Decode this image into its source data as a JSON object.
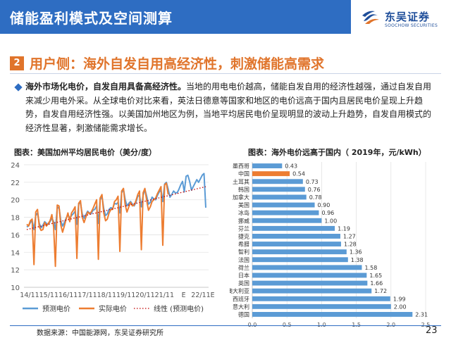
{
  "header": {
    "title": "储能盈利模式及空间测算"
  },
  "logo": {
    "name_cn": "东吴证券",
    "name_en": "SOOCHOW SECURITIES",
    "colors": {
      "primary": "#1f4e9a",
      "accent": "#e0742b"
    }
  },
  "section": {
    "number": "2",
    "title": "用户侧：海外自发自用高经济性，刺激储能高需求"
  },
  "body": {
    "bold_lead": "海外市场化电价，自发自用具备高经济性。",
    "text": "当地的用电电价越高，储能自发自用的经济性越强，通过自发自用来减少用电外采。从全球电价对比来看，英法日德意等国家和地区的电价远高于国内且居民电价呈现上升趋势，自发自用经济性强。以美国加州地区为例，当地平均居民电价呈现明显的波动上升趋势，自发自用模式的经济性显著，刺激储能需求增长。"
  },
  "footer": {
    "source": "数据来源：中国能源网，东吴证券研究所",
    "page": "23"
  },
  "colors": {
    "brand_blue": "#2e6dc2",
    "forecast": "#5b9bd5",
    "actual": "#ed7d31",
    "trend": "#c00000"
  },
  "chart_data": [
    {
      "type": "line",
      "title": "图表：美国加州平均居民电价（美分/度）",
      "ylim": [
        10,
        24
      ],
      "yticks": [
        10,
        12,
        14,
        16,
        18,
        20,
        22,
        24
      ],
      "x_tick_labels": [
        "14/11",
        "15/11",
        "16/11",
        "17/11",
        "18/11",
        "19/11",
        "20/11",
        "21/11",
        "E",
        "22/11E"
      ],
      "grid": true,
      "legend_position": "bottom",
      "series": [
        {
          "name": "预测电价",
          "color": "#5b9bd5",
          "values": [
            16.9,
            17.0,
            17.4,
            17.6,
            16.6,
            18.2,
            18.5,
            17.3,
            16.8,
            17.1,
            17.5,
            17.3,
            17.2,
            17.5,
            17.9,
            17.5,
            16.6,
            19.0,
            19.2,
            17.6,
            17.0,
            17.4,
            17.9,
            18.3,
            17.9,
            18.2,
            18.4,
            18.7,
            17.2,
            19.6,
            19.6,
            18.4,
            17.9,
            18.3,
            18.7,
            18.5,
            18.4,
            18.8,
            18.9,
            19.3,
            17.3,
            20.0,
            20.4,
            19.0,
            18.2,
            18.4,
            18.9,
            19.1,
            19.0,
            19.6,
            19.5,
            19.7,
            18.5,
            20.8,
            21.2,
            20.0,
            19.3,
            19.6,
            19.8,
            19.5,
            19.3,
            19.7,
            20.4,
            20.5,
            19.2,
            20.5,
            21.2,
            20.4,
            19.5,
            19.7,
            20.3,
            20.1,
            20.0,
            20.5,
            20.9,
            21.1,
            19.8,
            21.8,
            22.0,
            21.2,
            20.3,
            20.6,
            21.0,
            20.8,
            20.8,
            21.2,
            21.7,
            22.1,
            20.9,
            22.7,
            22.8,
            22.1,
            21.1,
            21.5,
            21.9,
            22.3,
            22.0,
            22.4,
            22.8,
            23.0,
            19.1
          ]
        },
        {
          "name": "实际电价",
          "color": "#ed7d31",
          "values": [
            17.2,
            17.0,
            17.6,
            17.8,
            12.6,
            18.6,
            18.9,
            16.9,
            16.5,
            16.6,
            17.4,
            17.0,
            17.3,
            17.6,
            18.3,
            16.9,
            12.4,
            19.4,
            19.3,
            17.1,
            16.3,
            17.0,
            17.8,
            18.5,
            17.5,
            18.5,
            18.8,
            19.2,
            13.3,
            19.6,
            19.9,
            18.0,
            17.4,
            18.0,
            18.6,
            18.4,
            18.6,
            19.0,
            19.5,
            20.0,
            13.2,
            20.2,
            20.6,
            18.5,
            17.6,
            17.8,
            18.5,
            18.9,
            18.9,
            19.8,
            20.0,
            20.4,
            14.1,
            21.0,
            21.3,
            19.4,
            18.6,
            19.2,
            19.7,
            19.3,
            19.4,
            19.9,
            20.6,
            21.0,
            14.3,
            20.8,
            21.3,
            19.9,
            18.8,
            19.2,
            19.8,
            20.0,
            20.2,
            20.7,
            21.1,
            21.5,
            14.8,
            21.7,
            21.9,
            20.6
          ]
        },
        {
          "name": "线性 (预测电价)",
          "color": "#c00000",
          "values": [
            16.6,
            21.5
          ]
        }
      ]
    },
    {
      "type": "bar",
      "orientation": "horizontal",
      "title": "图表：海外电价远高于国内（ 2019年，元/kWh）",
      "xlim": [
        0,
        2.5
      ],
      "xticks": [
        "0.0",
        "0.5",
        "1.0",
        "1.5",
        "2.0",
        "2.5"
      ],
      "categories": [
        "墨西哥",
        "中国",
        "土耳其",
        "韩国",
        "加拿大",
        "美国",
        "冰岛",
        "挪威",
        "芬兰",
        "捷克",
        "希腊",
        "智利",
        "法国",
        "荷兰",
        "日本",
        "英国",
        "澳大利亚",
        "西班牙",
        "意大利",
        "德国"
      ],
      "values": [
        0.43,
        0.54,
        0.73,
        0.76,
        0.78,
        0.9,
        0.96,
        1.0,
        1.19,
        1.27,
        1.28,
        1.36,
        1.38,
        1.58,
        1.65,
        1.66,
        1.72,
        1.99,
        2.0,
        2.31
      ],
      "value_labels": [
        "0.43",
        "0.54",
        "0.73",
        "0.76",
        "0.78",
        "0.90",
        "0.96",
        "1.00",
        "1.19",
        "1.27",
        "1.28",
        "1.36",
        "1.38",
        "1.58",
        "1.65",
        "1.66",
        "1.72",
        "1.99",
        "2.00",
        "2.31"
      ],
      "highlight_category": "中国",
      "colors": {
        "bar": "#5b9bd5",
        "highlight": "#ed7d31"
      },
      "grid": true
    }
  ]
}
